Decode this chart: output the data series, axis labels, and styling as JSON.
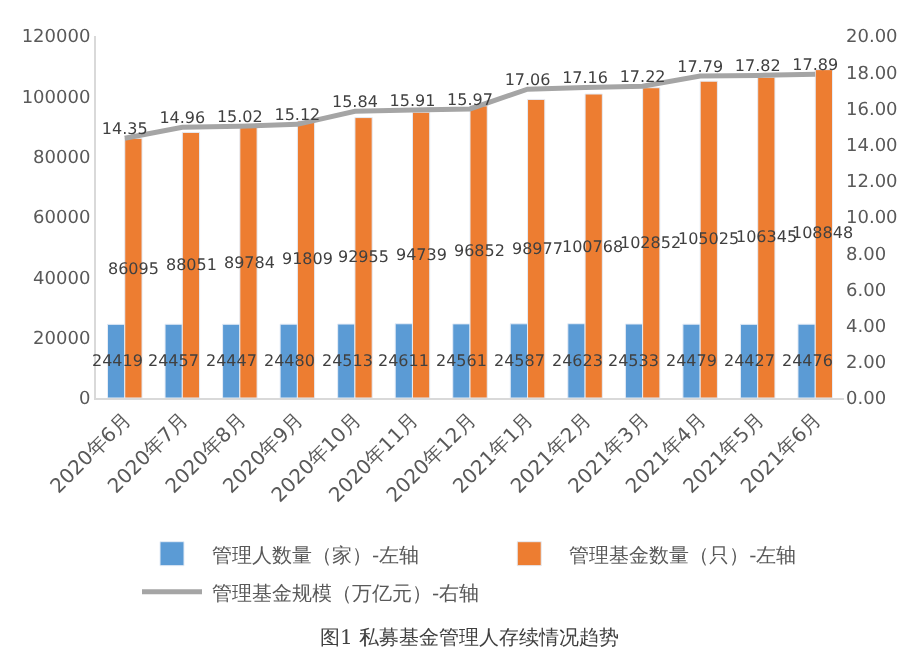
{
  "chart_data": {
    "type": "bar",
    "categories": [
      "2020年6月",
      "2020年7月",
      "2020年8月",
      "2020年9月",
      "2020年10月",
      "2020年11月",
      "2020年12月",
      "2021年1月",
      "2021年2月",
      "2021年3月",
      "2021年4月",
      "2021年5月",
      "2021年6月"
    ],
    "series": [
      {
        "name": "管理人数量（家）-左轴",
        "color": "#5b9bd5",
        "values": [
          24419,
          24457,
          24447,
          24480,
          24513,
          24611,
          24561,
          24587,
          24623,
          24533,
          24479,
          24427,
          24476
        ]
      },
      {
        "name": "管理基金数量（只）-左轴",
        "color": "#ed7d31",
        "values": [
          86095,
          88051,
          89784,
          91809,
          92955,
          94739,
          96852,
          98977,
          100768,
          102852,
          105025,
          106345,
          108848
        ]
      },
      {
        "name": "管理基金规模（万亿元）-右轴",
        "color": "#a5a5a5",
        "type": "line",
        "axis": "y2",
        "marker": "none",
        "values": [
          14.35,
          14.96,
          15.02,
          15.12,
          15.84,
          15.91,
          15.97,
          17.06,
          17.16,
          17.22,
          17.79,
          17.82,
          17.89
        ]
      }
    ],
    "ylim": [
      0,
      120000
    ],
    "yticks": [
      0,
      20000,
      40000,
      60000,
      80000,
      100000,
      120000
    ],
    "y2lim": [
      0,
      20
    ],
    "y2ticks": [
      {
        "value": 0,
        "label": "0.00"
      },
      {
        "value": 2,
        "label": "2.00"
      },
      {
        "value": 4,
        "label": "4.00"
      },
      {
        "value": 6,
        "label": "6.00"
      },
      {
        "value": 8,
        "label": "8.00"
      },
      {
        "value": 10,
        "label": "10.00"
      },
      {
        "value": 12,
        "label": "12.00"
      },
      {
        "value": 14,
        "label": "14.00"
      },
      {
        "value": 16,
        "label": "16.00"
      },
      {
        "value": 18,
        "label": "18.00"
      },
      {
        "value": 20,
        "label": "20.00"
      }
    ],
    "data_labels": true,
    "legend": "bottom",
    "annotations": [
      "图1 私募基金管理人存续情况趋势"
    ]
  }
}
